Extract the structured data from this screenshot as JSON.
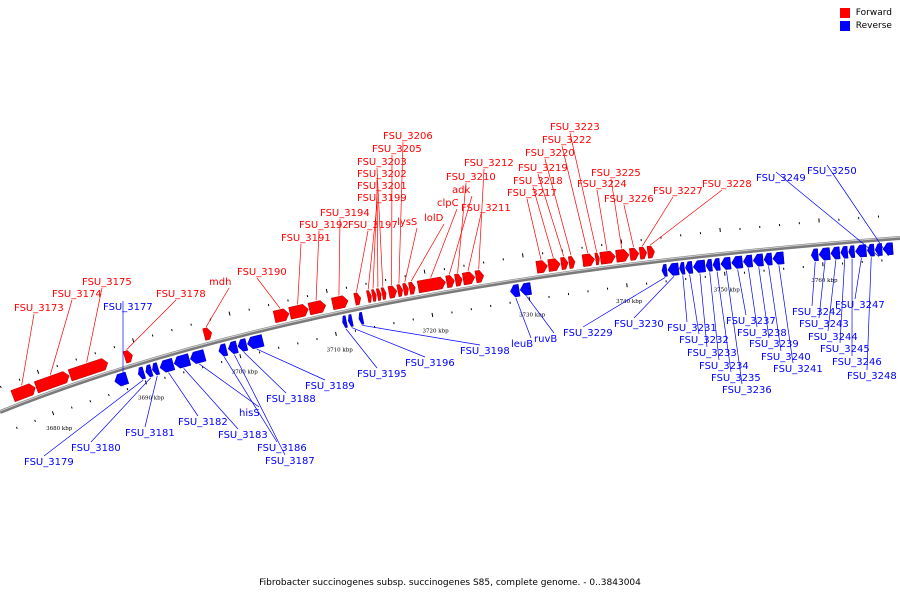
{
  "colors": {
    "forward": "#ff0000",
    "reverse": "#0000ff",
    "backbone": "#7a7a7a",
    "ticks": "#000000"
  },
  "legend": [
    {
      "label": "Forward",
      "color": "#ff0000"
    },
    {
      "label": "Reverse",
      "color": "#0000ff"
    }
  ],
  "caption": "Fibrobacter succinogenes subsp. succinogenes S85, complete genome. - 0..3843004",
  "axis": {
    "unit": "kbp",
    "ticks": [
      {
        "kbp": 3680,
        "label": "3680 kbp"
      },
      {
        "kbp": 3690,
        "label": "3690 kbp"
      },
      {
        "kbp": 3700,
        "label": "3700 kbp"
      },
      {
        "kbp": 3710,
        "label": "3710 kbp"
      },
      {
        "kbp": 3720,
        "label": "3720 kbp"
      },
      {
        "kbp": 3730,
        "label": "3730 kbp"
      },
      {
        "kbp": 3740,
        "label": "3740 kbp"
      },
      {
        "kbp": 3750,
        "label": "3750 kbp"
      },
      {
        "kbp": 3760,
        "label": "3760 kbp"
      }
    ]
  },
  "genes": [
    {
      "name": "FSU_3173",
      "strand": "+",
      "start": 3676.8,
      "end": 3679.2
    },
    {
      "name": "FSU_3174",
      "strand": "+",
      "start": 3679.3,
      "end": 3682.8
    },
    {
      "name": "FSU_3175",
      "strand": "+",
      "start": 3682.9,
      "end": 3686.9
    },
    {
      "name": "FSU_3177",
      "strand": "-",
      "start": 3687.0,
      "end": 3688.3
    },
    {
      "name": "FSU_3178",
      "strand": "+",
      "start": 3688.7,
      "end": 3689.5
    },
    {
      "name": "FSU_3179",
      "strand": "-",
      "start": 3689.5,
      "end": 3690.1
    },
    {
      "name": "FSU_3180",
      "strand": "-",
      "start": 3690.3,
      "end": 3690.9
    },
    {
      "name": "FSU_3181",
      "strand": "-",
      "start": 3691.0,
      "end": 3691.6
    },
    {
      "name": "FSU_3182",
      "strand": "-",
      "start": 3691.8,
      "end": 3693.2
    },
    {
      "name": "FSU_3183",
      "strand": "-",
      "start": 3693.3,
      "end": 3694.9
    },
    {
      "name": "hisS",
      "strand": "-",
      "start": 3695.0,
      "end": 3696.5
    },
    {
      "name": "mdh",
      "strand": "+",
      "start": 3697.0,
      "end": 3697.8
    },
    {
      "name": "FSU_3186",
      "strand": "-",
      "start": 3698.0,
      "end": 3698.8
    },
    {
      "name": "FSU_3187",
      "strand": "-",
      "start": 3699.0,
      "end": 3699.9
    },
    {
      "name": "FSU_3188",
      "strand": "-",
      "start": 3700.0,
      "end": 3700.9
    },
    {
      "name": "FSU_3189",
      "strand": "-",
      "start": 3701.0,
      "end": 3702.6
    },
    {
      "name": "FSU_3190",
      "strand": "+",
      "start": 3704.3,
      "end": 3705.8
    },
    {
      "name": "FSU_3191",
      "strand": "+",
      "start": 3705.9,
      "end": 3707.8
    },
    {
      "name": "FSU_3192",
      "strand": "+",
      "start": 3707.9,
      "end": 3709.6
    },
    {
      "name": "FSU_3194",
      "strand": "+",
      "start": 3710.3,
      "end": 3711.9
    },
    {
      "name": "FSU_3195",
      "strand": "-",
      "start": 3710.9,
      "end": 3711.3
    },
    {
      "name": "FSU_3196",
      "strand": "-",
      "start": 3711.5,
      "end": 3711.9
    },
    {
      "name": "FSU_3197",
      "strand": "+",
      "start": 3712.6,
      "end": 3713.2
    },
    {
      "name": "FSU_3198",
      "strand": "-",
      "start": 3712.6,
      "end": 3713.0
    },
    {
      "name": "FSU_3199",
      "strand": "+",
      "start": 3713.9,
      "end": 3714.3
    },
    {
      "name": "FSU_3201",
      "strand": "+",
      "start": 3714.4,
      "end": 3714.8
    },
    {
      "name": "FSU_3202",
      "strand": "+",
      "start": 3714.9,
      "end": 3715.3
    },
    {
      "name": "FSU_3203",
      "strand": "+",
      "start": 3715.4,
      "end": 3715.8
    },
    {
      "name": "FSU_3205",
      "strand": "+",
      "start": 3716.1,
      "end": 3716.9
    },
    {
      "name": "FSU_3206",
      "strand": "+",
      "start": 3717.0,
      "end": 3717.5
    },
    {
      "name": "lysS",
      "strand": "+",
      "start": 3717.6,
      "end": 3718.1
    },
    {
      "name": "lolD",
      "strand": "+",
      "start": 3718.2,
      "end": 3718.8
    },
    {
      "name": "clpC",
      "strand": "+",
      "start": 3719.1,
      "end": 3721.9
    },
    {
      "name": "adk",
      "strand": "+",
      "start": 3722.0,
      "end": 3722.8
    },
    {
      "name": "FSU_3210",
      "strand": "+",
      "start": 3722.9,
      "end": 3723.6
    },
    {
      "name": "FSU_3211",
      "strand": "+",
      "start": 3723.7,
      "end": 3724.9
    },
    {
      "name": "FSU_3212",
      "strand": "+",
      "start": 3725.0,
      "end": 3725.8
    },
    {
      "name": "leuB",
      "strand": "-",
      "start": 3728.2,
      "end": 3729.1
    },
    {
      "name": "ruvB",
      "strand": "-",
      "start": 3729.2,
      "end": 3730.3
    },
    {
      "name": "FSU_3217",
      "strand": "+",
      "start": 3731.2,
      "end": 3732.3
    },
    {
      "name": "FSU_3218",
      "strand": "+",
      "start": 3732.4,
      "end": 3733.6
    },
    {
      "name": "FSU_3219",
      "strand": "+",
      "start": 3733.7,
      "end": 3734.4
    },
    {
      "name": "FSU_3220",
      "strand": "+",
      "start": 3734.5,
      "end": 3735.1
    },
    {
      "name": "FSU_3222",
      "strand": "+",
      "start": 3735.9,
      "end": 3737.1
    },
    {
      "name": "FSU_3223",
      "strand": "+",
      "start": 3737.2,
      "end": 3737.6
    },
    {
      "name": "FSU_3224",
      "strand": "+",
      "start": 3737.7,
      "end": 3739.2
    },
    {
      "name": "FSU_3225",
      "strand": "+",
      "start": 3739.3,
      "end": 3740.6
    },
    {
      "name": "FSU_3226",
      "strand": "+",
      "start": 3740.7,
      "end": 3741.6
    },
    {
      "name": "FSU_3227",
      "strand": "+",
      "start": 3741.7,
      "end": 3742.4
    },
    {
      "name": "FSU_3228",
      "strand": "+",
      "start": 3742.5,
      "end": 3743.2
    },
    {
      "name": "FSU_3229",
      "strand": "-",
      "start": 3743.7,
      "end": 3744.2
    },
    {
      "name": "FSU_3230",
      "strand": "-",
      "start": 3744.3,
      "end": 3745.4
    },
    {
      "name": "FSU_3231",
      "strand": "-",
      "start": 3745.5,
      "end": 3746.0
    },
    {
      "name": "FSU_3232",
      "strand": "-",
      "start": 3746.1,
      "end": 3746.8
    },
    {
      "name": "FSU_3233",
      "strand": "-",
      "start": 3746.9,
      "end": 3748.1
    },
    {
      "name": "FSU_3234",
      "strand": "-",
      "start": 3748.2,
      "end": 3748.8
    },
    {
      "name": "FSU_3235",
      "strand": "-",
      "start": 3748.9,
      "end": 3749.6
    },
    {
      "name": "FSU_3236",
      "strand": "-",
      "start": 3749.7,
      "end": 3750.7
    },
    {
      "name": "FSU_3237",
      "strand": "-",
      "start": 3750.8,
      "end": 3751.9
    },
    {
      "name": "FSU_3238",
      "strand": "-",
      "start": 3752.0,
      "end": 3752.9
    },
    {
      "name": "FSU_3239",
      "strand": "-",
      "start": 3753.0,
      "end": 3754.0
    },
    {
      "name": "FSU_3240",
      "strand": "-",
      "start": 3754.1,
      "end": 3754.9
    },
    {
      "name": "FSU_3241",
      "strand": "-",
      "start": 3755.0,
      "end": 3756.1
    },
    {
      "name": "FSU_3242",
      "strand": "-",
      "start": 3758.9,
      "end": 3759.6
    },
    {
      "name": "FSU_3243",
      "strand": "-",
      "start": 3759.7,
      "end": 3760.8
    },
    {
      "name": "FSU_3244",
      "strand": "-",
      "start": 3760.9,
      "end": 3761.8
    },
    {
      "name": "FSU_3245",
      "strand": "-",
      "start": 3761.9,
      "end": 3762.6
    },
    {
      "name": "FSU_3246",
      "strand": "-",
      "start": 3762.7,
      "end": 3763.3
    },
    {
      "name": "FSU_3247",
      "strand": "-",
      "start": 3763.4,
      "end": 3764.5
    },
    {
      "name": "FSU_3248",
      "strand": "-",
      "start": 3764.6,
      "end": 3765.3
    },
    {
      "name": "FSU_3249",
      "strand": "-",
      "start": 3765.4,
      "end": 3766.1
    },
    {
      "name": "FSU_3250",
      "strand": "-",
      "start": 3766.2,
      "end": 3767.2
    }
  ]
}
